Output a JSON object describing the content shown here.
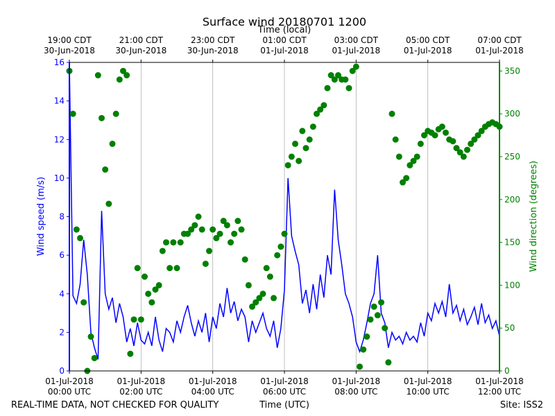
{
  "chart_data": {
    "type": "line",
    "title": "Surface wind 20180701 1200",
    "x2label": "Time (local)",
    "xlabel": "Time (UTC)",
    "ylabel": "Wind speed (m/s)",
    "y2label": "Wind direction (degrees)",
    "footer_left": "REAL-TIME DATA, NOT CHECKED FOR QUALITY",
    "footer_right": "Site: ISS2",
    "grid": true,
    "xlim": [
      0,
      12
    ],
    "xticks": [
      {
        "value": 0,
        "label": [
          "01-Jul-2018",
          "00:00 UTC"
        ]
      },
      {
        "value": 2,
        "label": [
          "01-Jul-2018",
          "02:00 UTC"
        ]
      },
      {
        "value": 4,
        "label": [
          "01-Jul-2018",
          "04:00 UTC"
        ]
      },
      {
        "value": 6,
        "label": [
          "01-Jul-2018",
          "06:00 UTC"
        ]
      },
      {
        "value": 8,
        "label": [
          "01-Jul-2018",
          "08:00 UTC"
        ]
      },
      {
        "value": 10,
        "label": [
          "01-Jul-2018",
          "10:00 UTC"
        ]
      },
      {
        "value": 12,
        "label": [
          "01-Jul-2018",
          "12:00 UTC"
        ]
      }
    ],
    "x2ticks": [
      {
        "value": 0,
        "label": [
          "19:00 CDT",
          "30-Jun-2018"
        ]
      },
      {
        "value": 2,
        "label": [
          "21:00 CDT",
          "30-Jun-2018"
        ]
      },
      {
        "value": 4,
        "label": [
          "23:00 CDT",
          "30-Jun-2018"
        ]
      },
      {
        "value": 6,
        "label": [
          "01:00 CDT",
          "01-Jul-2018"
        ]
      },
      {
        "value": 8,
        "label": [
          "03:00 CDT",
          "01-Jul-2018"
        ]
      },
      {
        "value": 10,
        "label": [
          "05:00 CDT",
          "01-Jul-2018"
        ]
      },
      {
        "value": 12,
        "label": [
          "07:00 CDT",
          "01-Jul-2018"
        ]
      }
    ],
    "ylim": [
      0,
      16
    ],
    "yticks": [
      0,
      2,
      4,
      6,
      8,
      10,
      12,
      14,
      16
    ],
    "y2lim": [
      0,
      360
    ],
    "y2ticks": [
      0,
      50,
      100,
      150,
      200,
      250,
      300,
      350
    ],
    "x": [
      0,
      0.1,
      0.2,
      0.3,
      0.4,
      0.5,
      0.6,
      0.7,
      0.8,
      0.9,
      1,
      1.1,
      1.2,
      1.3,
      1.4,
      1.5,
      1.6,
      1.7,
      1.8,
      1.9,
      2,
      2.1,
      2.2,
      2.3,
      2.4,
      2.5,
      2.6,
      2.7,
      2.8,
      2.9,
      3,
      3.1,
      3.2,
      3.3,
      3.4,
      3.5,
      3.6,
      3.7,
      3.8,
      3.9,
      4,
      4.1,
      4.2,
      4.3,
      4.4,
      4.5,
      4.6,
      4.7,
      4.8,
      4.9,
      5,
      5.1,
      5.2,
      5.3,
      5.4,
      5.5,
      5.6,
      5.7,
      5.8,
      5.9,
      6,
      6.1,
      6.2,
      6.3,
      6.4,
      6.5,
      6.6,
      6.7,
      6.8,
      6.9,
      7,
      7.1,
      7.2,
      7.3,
      7.4,
      7.5,
      7.6,
      7.7,
      7.8,
      7.9,
      8,
      8.1,
      8.2,
      8.3,
      8.4,
      8.5,
      8.6,
      8.7,
      8.8,
      8.9,
      9,
      9.1,
      9.2,
      9.3,
      9.4,
      9.5,
      9.6,
      9.7,
      9.8,
      9.9,
      10,
      10.1,
      10.2,
      10.3,
      10.4,
      10.5,
      10.6,
      10.7,
      10.8,
      10.9,
      11,
      11.1,
      11.2,
      11.3,
      11.4,
      11.5,
      11.6,
      11.7,
      11.8,
      11.9,
      12
    ],
    "series": [
      {
        "type": "line",
        "color": "#0000ff",
        "axis": "y",
        "values": [
          16,
          3.9,
          3.5,
          4.5,
          6.8,
          5.0,
          2.0,
          1.2,
          0.6,
          8.3,
          4.0,
          3.2,
          3.8,
          2.5,
          3.5,
          2.8,
          1.5,
          2.2,
          1.3,
          2.5,
          1.6,
          1.4,
          2.0,
          1.3,
          2.8,
          1.6,
          1.0,
          2.2,
          2.0,
          1.5,
          2.6,
          2.0,
          2.8,
          3.4,
          2.5,
          1.8,
          2.6,
          2.0,
          3.0,
          1.5,
          2.8,
          2.2,
          3.5,
          2.8,
          4.3,
          3.0,
          3.6,
          2.6,
          3.2,
          2.8,
          1.5,
          2.6,
          2.0,
          2.5,
          3.0,
          2.2,
          1.8,
          2.6,
          1.2,
          2.2,
          4.2,
          10.0,
          7.0,
          6.2,
          5.5,
          3.5,
          4.2,
          3.0,
          4.5,
          3.2,
          5.0,
          3.8,
          6.0,
          5.0,
          9.4,
          6.8,
          5.5,
          4.0,
          3.5,
          2.8,
          1.5,
          1.0,
          1.6,
          2.5,
          3.5,
          4.0,
          6.0,
          3.0,
          2.5,
          1.2,
          2.0,
          1.6,
          1.8,
          1.4,
          2.0,
          1.6,
          1.8,
          1.5,
          2.5,
          1.8,
          3.0,
          2.6,
          3.5,
          3.0,
          3.6,
          2.8,
          4.5,
          3.0,
          3.4,
          2.6,
          3.2,
          2.4,
          2.8,
          3.3,
          2.4,
          3.5,
          2.5,
          2.9,
          2.2,
          2.6,
          1.8
        ]
      },
      {
        "type": "scatter",
        "color": "#008000",
        "axis": "y2",
        "values": [
          350,
          300,
          165,
          155,
          80,
          0,
          40,
          15,
          345,
          295,
          235,
          195,
          265,
          300,
          340,
          350,
          345,
          20,
          60,
          120,
          60,
          110,
          90,
          80,
          95,
          100,
          140,
          150,
          120,
          150,
          120,
          150,
          160,
          160,
          165,
          170,
          180,
          165,
          125,
          140,
          165,
          155,
          160,
          175,
          170,
          150,
          160,
          175,
          165,
          130,
          100,
          75,
          80,
          85,
          90,
          120,
          110,
          85,
          135,
          145,
          160,
          240,
          250,
          265,
          245,
          280,
          260,
          270,
          285,
          300,
          305,
          310,
          330,
          345,
          340,
          345,
          340,
          340,
          330,
          350,
          355,
          5,
          25,
          40,
          60,
          75,
          65,
          80,
          50,
          10,
          300,
          270,
          250,
          220,
          225,
          240,
          245,
          250,
          265,
          275,
          280,
          278,
          275,
          282,
          285,
          278,
          270,
          268,
          260,
          255,
          250,
          258,
          265,
          270,
          275,
          280,
          285,
          288,
          290,
          288,
          285
        ]
      }
    ]
  }
}
